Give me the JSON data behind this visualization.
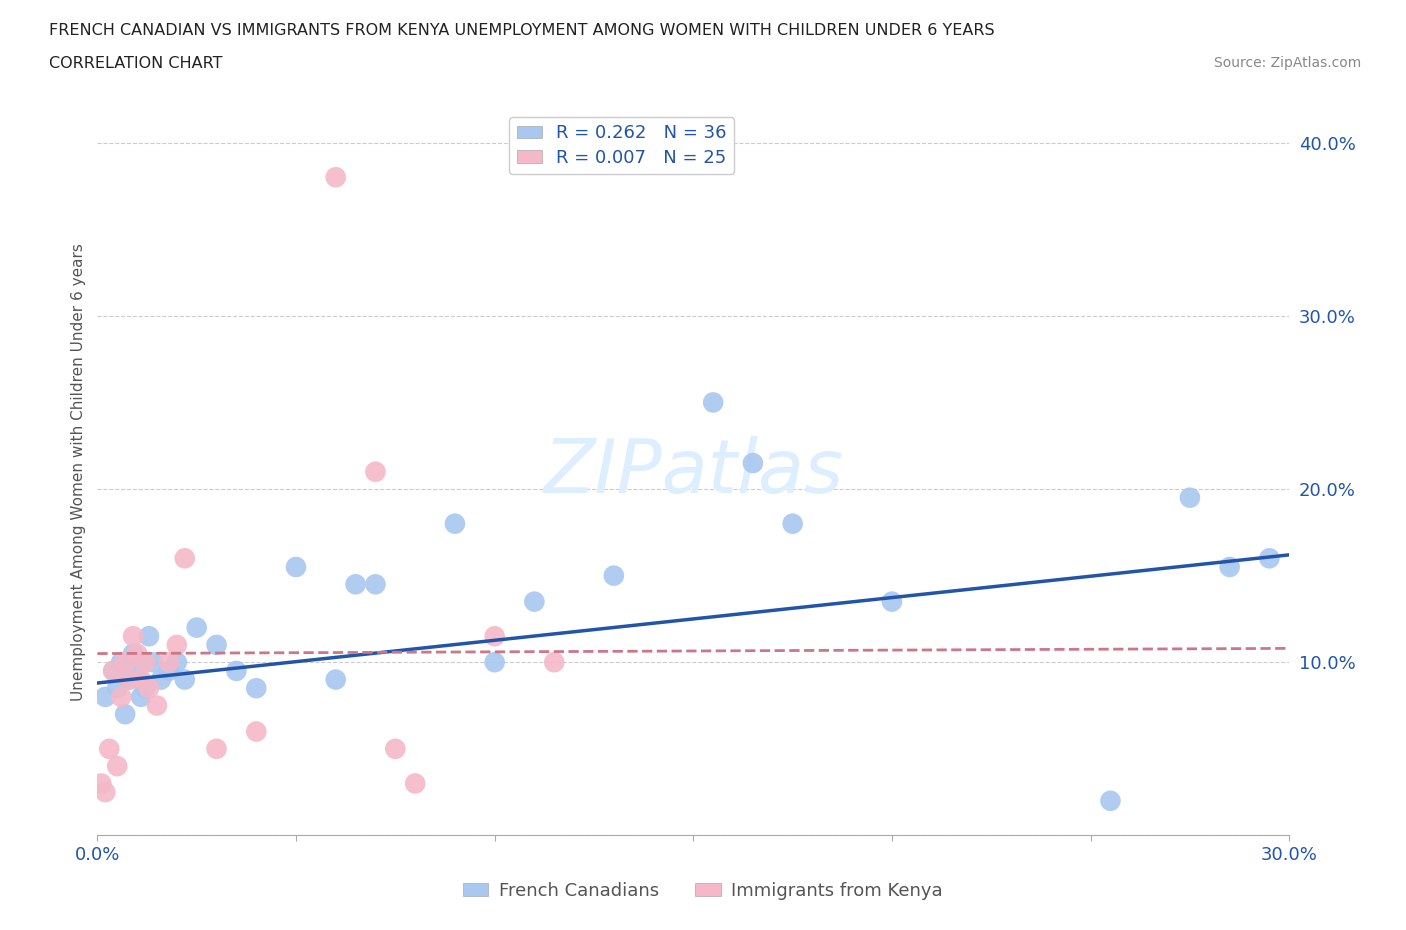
{
  "title_line1": "FRENCH CANADIAN VS IMMIGRANTS FROM KENYA UNEMPLOYMENT AMONG WOMEN WITH CHILDREN UNDER 6 YEARS",
  "title_line2": "CORRELATION CHART",
  "source": "Source: ZipAtlas.com",
  "ylabel": "Unemployment Among Women with Children Under 6 years",
  "xlim": [
    0.0,
    0.3
  ],
  "ylim": [
    0.0,
    0.42
  ],
  "xticks": [
    0.0,
    0.05,
    0.1,
    0.15,
    0.2,
    0.25,
    0.3
  ],
  "xtick_labels": [
    "0.0%",
    "",
    "",
    "",
    "",
    "",
    "30.0%"
  ],
  "yticks": [
    0.0,
    0.1,
    0.2,
    0.3,
    0.4
  ],
  "ytick_labels": [
    "",
    "10.0%",
    "20.0%",
    "30.0%",
    "40.0%"
  ],
  "R_blue": 0.262,
  "N_blue": 36,
  "R_pink": 0.007,
  "N_pink": 25,
  "color_blue": "#a8c8f0",
  "color_pink": "#f4b8c8",
  "line_blue": "#2255aa",
  "line_pink": "#cc7788",
  "watermark": "ZIPatlas",
  "watermark_color": "#ddeeff",
  "legend_label_blue": "French Canadians",
  "legend_label_pink": "Immigrants from Kenya",
  "blue_x": [
    0.002,
    0.004,
    0.005,
    0.006,
    0.007,
    0.008,
    0.009,
    0.01,
    0.011,
    0.012,
    0.013,
    0.014,
    0.016,
    0.018,
    0.02,
    0.022,
    0.025,
    0.03,
    0.035,
    0.04,
    0.05,
    0.06,
    0.065,
    0.07,
    0.09,
    0.1,
    0.11,
    0.13,
    0.155,
    0.165,
    0.175,
    0.2,
    0.255,
    0.275,
    0.285,
    0.295
  ],
  "blue_y": [
    0.08,
    0.095,
    0.085,
    0.1,
    0.07,
    0.09,
    0.105,
    0.095,
    0.08,
    0.085,
    0.115,
    0.1,
    0.09,
    0.095,
    0.1,
    0.09,
    0.12,
    0.11,
    0.095,
    0.085,
    0.155,
    0.09,
    0.145,
    0.145,
    0.18,
    0.1,
    0.135,
    0.15,
    0.25,
    0.215,
    0.18,
    0.135,
    0.02,
    0.195,
    0.155,
    0.16
  ],
  "pink_x": [
    0.001,
    0.002,
    0.003,
    0.004,
    0.005,
    0.006,
    0.007,
    0.008,
    0.009,
    0.01,
    0.011,
    0.012,
    0.013,
    0.015,
    0.018,
    0.02,
    0.022,
    0.03,
    0.04,
    0.06,
    0.07,
    0.075,
    0.08,
    0.1,
    0.115
  ],
  "pink_y": [
    0.03,
    0.025,
    0.05,
    0.095,
    0.04,
    0.08,
    0.1,
    0.09,
    0.115,
    0.105,
    0.09,
    0.1,
    0.085,
    0.075,
    0.1,
    0.11,
    0.16,
    0.05,
    0.06,
    0.38,
    0.21,
    0.05,
    0.03,
    0.115,
    0.1
  ]
}
